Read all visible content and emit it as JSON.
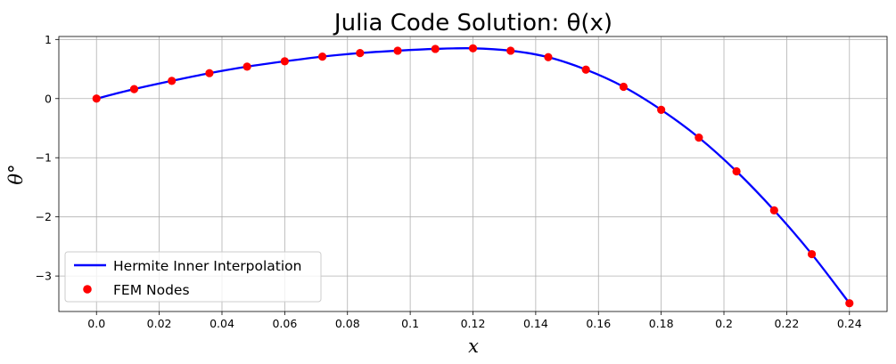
{
  "chart_data": {
    "type": "line",
    "title": "Julia Code Solution: θ(x)",
    "xlabel": "x",
    "ylabel": "θ°",
    "xlim": [
      -0.012,
      0.252
    ],
    "ylim": [
      -3.6,
      1.05
    ],
    "x_ticks": [
      0.0,
      0.02,
      0.04,
      0.06,
      0.08,
      0.1,
      0.12,
      0.14,
      0.16,
      0.18,
      0.2,
      0.22,
      0.24
    ],
    "x_tick_labels": [
      "0.0",
      "0.02",
      "0.04",
      "0.06",
      "0.08",
      "0.1",
      "0.12",
      "0.14",
      "0.16",
      "0.18",
      "0.2",
      "0.22",
      "0.24"
    ],
    "y_ticks": [
      1,
      0,
      -1,
      -2,
      -3
    ],
    "y_tick_labels": [
      "1",
      "0",
      "−1",
      "−2",
      "−3"
    ],
    "grid": true,
    "legend_position": "lower-left",
    "series": [
      {
        "name": "Hermite Inner Interpolation",
        "kind": "line",
        "color": "#0000ff",
        "x": [
          0.0,
          0.012,
          0.024,
          0.036,
          0.048,
          0.06,
          0.072,
          0.084,
          0.096,
          0.108,
          0.12,
          0.132,
          0.144,
          0.156,
          0.168,
          0.18,
          0.192,
          0.204,
          0.216,
          0.228,
          0.24
        ],
        "y": [
          0.0,
          0.16,
          0.3,
          0.43,
          0.54,
          0.63,
          0.71,
          0.77,
          0.81,
          0.84,
          0.85,
          0.81,
          0.7,
          0.49,
          0.2,
          -0.19,
          -0.66,
          -1.23,
          -1.89,
          -2.63,
          -3.46
        ]
      },
      {
        "name": "FEM Nodes",
        "kind": "scatter",
        "color": "#ff0000",
        "x": [
          0.0,
          0.012,
          0.024,
          0.036,
          0.048,
          0.06,
          0.072,
          0.084,
          0.096,
          0.108,
          0.12,
          0.132,
          0.144,
          0.156,
          0.168,
          0.18,
          0.192,
          0.204,
          0.216,
          0.228,
          0.24
        ],
        "y": [
          0.0,
          0.16,
          0.3,
          0.43,
          0.54,
          0.63,
          0.71,
          0.77,
          0.81,
          0.84,
          0.85,
          0.81,
          0.7,
          0.49,
          0.2,
          -0.19,
          -0.66,
          -1.23,
          -1.89,
          -2.63,
          -3.46
        ]
      }
    ],
    "colors": {
      "grid": "#b0b0b0",
      "axis": "#000000"
    }
  }
}
